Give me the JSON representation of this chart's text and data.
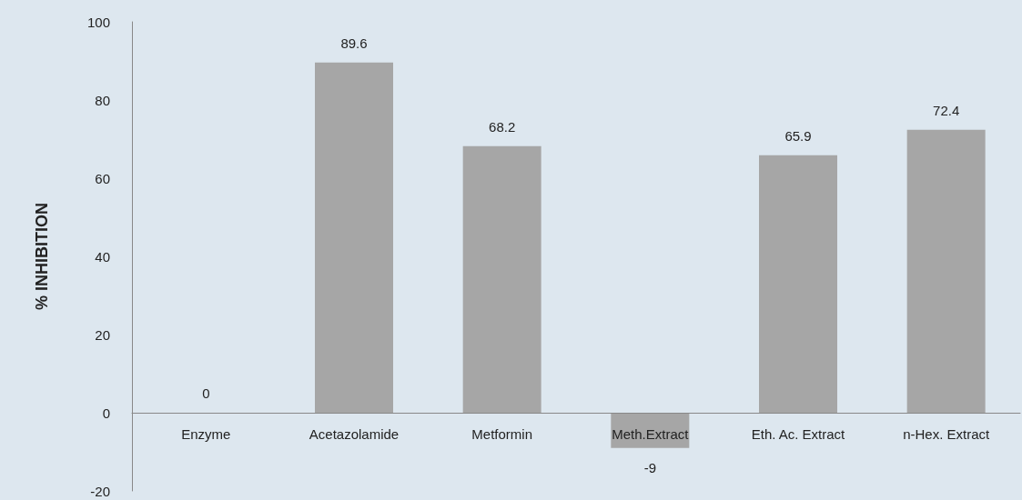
{
  "chart_data": {
    "type": "bar",
    "ylabel": "% INHIBITION",
    "categories": [
      "Enzyme",
      "Acetazolamide",
      "Metformin",
      "Meth.Extract",
      "Eth. Ac. Extract",
      "n-Hex. Extract"
    ],
    "values": [
      0,
      89.6,
      68.2,
      -9,
      65.9,
      72.4
    ],
    "color": "#a6a6a6",
    "ylim": [
      -20,
      100
    ],
    "yticks": [
      -20,
      0,
      20,
      40,
      60,
      80,
      100
    ],
    "data_labels": true
  }
}
